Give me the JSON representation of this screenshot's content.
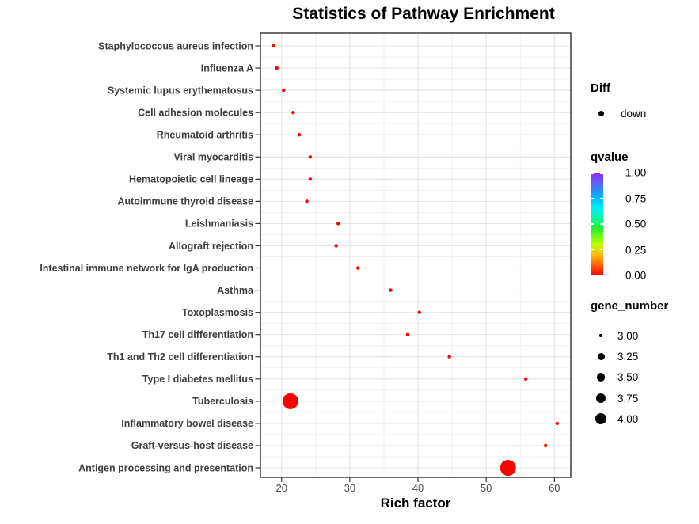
{
  "title": "Statistics of Pathway Enrichment",
  "chart_data": {
    "type": "scatter",
    "title": "Statistics of Pathway Enrichment",
    "xlabel": "Rich factor",
    "ylabel": "",
    "xlim": [
      16.9,
      62.4
    ],
    "xticks": [
      20,
      30,
      40,
      50,
      60
    ],
    "x_minor_ticks": [
      25,
      35,
      45,
      55
    ],
    "grid": true,
    "legend_position": "right",
    "points": [
      {
        "pathway": "Staphylococcus aureus infection",
        "rich_factor": 18.8,
        "gene_number": 3,
        "qvalue": 0.0
      },
      {
        "pathway": "Influenza A",
        "rich_factor": 19.3,
        "gene_number": 3,
        "qvalue": 0.0
      },
      {
        "pathway": "Systemic lupus erythematosus",
        "rich_factor": 20.3,
        "gene_number": 3,
        "qvalue": 0.0
      },
      {
        "pathway": "Cell adhesion molecules",
        "rich_factor": 21.7,
        "gene_number": 3,
        "qvalue": 0.0
      },
      {
        "pathway": "Rheumatoid arthritis",
        "rich_factor": 22.6,
        "gene_number": 3,
        "qvalue": 0.0
      },
      {
        "pathway": "Viral myocarditis",
        "rich_factor": 24.2,
        "gene_number": 3,
        "qvalue": 0.0
      },
      {
        "pathway": "Hematopoietic cell lineage",
        "rich_factor": 24.2,
        "gene_number": 3,
        "qvalue": 0.0
      },
      {
        "pathway": "Autoimmune thyroid disease",
        "rich_factor": 23.7,
        "gene_number": 3,
        "qvalue": 0.0
      },
      {
        "pathway": "Leishmaniasis",
        "rich_factor": 28.3,
        "gene_number": 3,
        "qvalue": 0.0
      },
      {
        "pathway": "Allograft rejection",
        "rich_factor": 28.0,
        "gene_number": 3,
        "qvalue": 0.0
      },
      {
        "pathway": "Intestinal immune network for IgA production",
        "rich_factor": 31.2,
        "gene_number": 3,
        "qvalue": 0.0
      },
      {
        "pathway": "Asthma",
        "rich_factor": 36.0,
        "gene_number": 3,
        "qvalue": 0.0
      },
      {
        "pathway": "Toxoplasmosis",
        "rich_factor": 40.2,
        "gene_number": 3,
        "qvalue": 0.0
      },
      {
        "pathway": "Th17 cell differentiation",
        "rich_factor": 38.5,
        "gene_number": 3,
        "qvalue": 0.0
      },
      {
        "pathway": "Th1 and Th2 cell differentiation",
        "rich_factor": 44.6,
        "gene_number": 3,
        "qvalue": 0.0
      },
      {
        "pathway": "Type I diabetes mellitus",
        "rich_factor": 55.8,
        "gene_number": 3,
        "qvalue": 0.0
      },
      {
        "pathway": "Tuberculosis",
        "rich_factor": 21.3,
        "gene_number": 4,
        "qvalue": 0.0
      },
      {
        "pathway": "Inflammatory bowel disease",
        "rich_factor": 60.4,
        "gene_number": 3,
        "qvalue": 0.0
      },
      {
        "pathway": "Graft-versus-host disease",
        "rich_factor": 58.7,
        "gene_number": 3,
        "qvalue": 0.0
      },
      {
        "pathway": "Antigen processing and presentation",
        "rich_factor": 53.2,
        "gene_number": 4,
        "qvalue": 0.0
      }
    ]
  },
  "legend": {
    "diff": {
      "title": "Diff",
      "items": [
        {
          "label": "down",
          "marker_color": "#000000"
        }
      ]
    },
    "qvalue": {
      "title": "qvalue",
      "tick_labels": [
        "1.00",
        "0.75",
        "0.50",
        "0.25",
        "0.00"
      ],
      "gradient_stops": [
        {
          "at": 0.0,
          "color": "#FF0000"
        },
        {
          "at": 0.1,
          "color": "#FF5F00"
        },
        {
          "at": 0.2,
          "color": "#FFB900"
        },
        {
          "at": 0.3,
          "color": "#BFFF00"
        },
        {
          "at": 0.45,
          "color": "#2BF02B"
        },
        {
          "at": 0.55,
          "color": "#00FF99"
        },
        {
          "at": 0.66,
          "color": "#00EFFF"
        },
        {
          "at": 0.78,
          "color": "#00AAFF"
        },
        {
          "at": 0.88,
          "color": "#5A6AFF"
        },
        {
          "at": 1.0,
          "color": "#8F2BFF"
        }
      ]
    },
    "gene_number": {
      "title": "gene_number",
      "items": [
        {
          "label": "3.00",
          "value": 3.0
        },
        {
          "label": "3.25",
          "value": 3.25
        },
        {
          "label": "3.50",
          "value": 3.5
        },
        {
          "label": "3.75",
          "value": 3.75
        },
        {
          "label": "4.00",
          "value": 4.0
        }
      ]
    }
  },
  "colors": {
    "point_red": "#FF0000",
    "panel_border": "#2E2E2E",
    "grid_major": "#E4E4E4",
    "grid_minor": "#F1F1F1",
    "axis_text": "#4A4A4A",
    "y_label_text": "#3E3E3E"
  }
}
